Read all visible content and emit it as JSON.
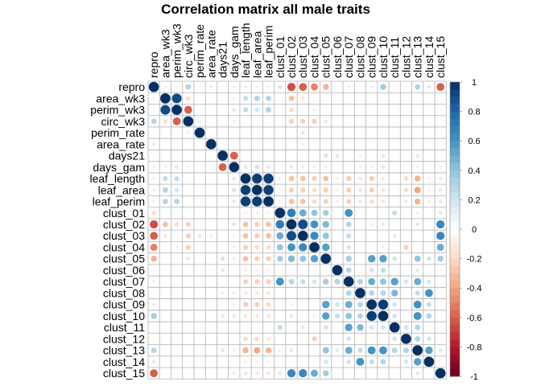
{
  "chart_data": {
    "type": "heatmap",
    "title": "Correlation matrix all male traits",
    "xlabel": "",
    "ylabel": "",
    "variables": [
      "repro",
      "area_wk3",
      "perim_wk3",
      "circ_wk3",
      "perim_rate",
      "area_rate",
      "days21",
      "days_gam",
      "leaf_length",
      "leaf_area",
      "leaf_perim",
      "clust_01",
      "clust_02",
      "clust_03",
      "clust_04",
      "clust_05",
      "clust_06",
      "clust_07",
      "clust_08",
      "clust_09",
      "clust_10",
      "clust_11",
      "clust_12",
      "clust_13",
      "clust_14",
      "clust_15"
    ],
    "value_range": [
      -1,
      1
    ],
    "colorbar_ticks": [
      "1",
      "0.8",
      "0.6",
      "0.4",
      "0.2",
      "0",
      "-0.2",
      "-0.4",
      "-0.6",
      "-0.8",
      "-1"
    ],
    "colorbar_placement": "right",
    "colors": {
      "negative": "#67001f",
      "zero": "#ffffff",
      "positive": "#053061",
      "grid": "#b0b0b0"
    },
    "correlations": [
      {
        "row": "repro",
        "col": "area_wk3",
        "value": 0.08
      },
      {
        "row": "repro",
        "col": "perim_wk3",
        "value": 0.05
      },
      {
        "row": "repro",
        "col": "circ_wk3",
        "value": 0.3
      },
      {
        "row": "repro",
        "col": "area_rate",
        "value": 0.12
      },
      {
        "row": "repro",
        "col": "days_gam",
        "value": 0.1
      },
      {
        "row": "repro",
        "col": "leaf_length",
        "value": 0.1
      },
      {
        "row": "repro",
        "col": "leaf_area",
        "value": 0.1
      },
      {
        "row": "repro",
        "col": "leaf_perim",
        "value": 0.1
      },
      {
        "row": "repro",
        "col": "clust_01",
        "value": -0.2
      },
      {
        "row": "repro",
        "col": "clust_02",
        "value": -0.65
      },
      {
        "row": "repro",
        "col": "clust_03",
        "value": -0.6
      },
      {
        "row": "repro",
        "col": "clust_04",
        "value": -0.5
      },
      {
        "row": "repro",
        "col": "clust_05",
        "value": -0.35
      },
      {
        "row": "repro",
        "col": "clust_07",
        "value": 0.1
      },
      {
        "row": "repro",
        "col": "clust_09",
        "value": 0.12
      },
      {
        "row": "repro",
        "col": "clust_10",
        "value": 0.35
      },
      {
        "row": "repro",
        "col": "clust_13",
        "value": 0.3
      },
      {
        "row": "repro",
        "col": "clust_14",
        "value": 0.15
      },
      {
        "row": "repro",
        "col": "clust_15",
        "value": -0.6
      },
      {
        "row": "area_wk3",
        "col": "perim_wk3",
        "value": 0.9
      },
      {
        "row": "area_wk3",
        "col": "circ_wk3",
        "value": -0.2
      },
      {
        "row": "area_wk3",
        "col": "days_gam",
        "value": 0.1
      },
      {
        "row": "area_wk3",
        "col": "leaf_length",
        "value": 0.25
      },
      {
        "row": "area_wk3",
        "col": "leaf_area",
        "value": 0.3
      },
      {
        "row": "area_wk3",
        "col": "leaf_perim",
        "value": 0.3
      },
      {
        "row": "area_wk3",
        "col": "clust_02",
        "value": -0.3
      },
      {
        "row": "area_wk3",
        "col": "clust_03",
        "value": -0.15
      },
      {
        "row": "perim_wk3",
        "col": "circ_wk3",
        "value": -0.6
      },
      {
        "row": "perim_wk3",
        "col": "days_gam",
        "value": 0.15
      },
      {
        "row": "perim_wk3",
        "col": "leaf_length",
        "value": 0.25
      },
      {
        "row": "perim_wk3",
        "col": "leaf_area",
        "value": 0.2
      },
      {
        "row": "perim_wk3",
        "col": "leaf_perim",
        "value": 0.3
      },
      {
        "row": "perim_wk3",
        "col": "clust_02",
        "value": -0.2
      },
      {
        "row": "perim_wk3",
        "col": "clust_04",
        "value": -0.1
      },
      {
        "row": "circ_wk3",
        "col": "perim_rate",
        "value": 0.1
      },
      {
        "row": "circ_wk3",
        "col": "days_gam",
        "value": -0.1
      },
      {
        "row": "circ_wk3",
        "col": "clust_02",
        "value": -0.25
      },
      {
        "row": "circ_wk3",
        "col": "clust_03",
        "value": -0.25
      },
      {
        "row": "circ_wk3",
        "col": "clust_04",
        "value": -0.25
      },
      {
        "row": "circ_wk3",
        "col": "clust_05",
        "value": -0.15
      },
      {
        "row": "perim_rate",
        "col": "clust_03",
        "value": 0.15
      },
      {
        "row": "area_rate",
        "col": "clust_03",
        "value": 0.1
      },
      {
        "row": "days21",
        "col": "days_gam",
        "value": -0.6
      },
      {
        "row": "days21",
        "col": "clust_05",
        "value": 0.2
      },
      {
        "row": "days21",
        "col": "clust_06",
        "value": 0.15
      },
      {
        "row": "days21",
        "col": "clust_08",
        "value": 0.1
      },
      {
        "row": "days21",
        "col": "clust_10",
        "value": 0.15
      },
      {
        "row": "days21",
        "col": "clust_13",
        "value": 0.15
      },
      {
        "row": "days_gam",
        "col": "leaf_length",
        "value": 0.15
      },
      {
        "row": "days_gam",
        "col": "leaf_area",
        "value": 0.2
      },
      {
        "row": "days_gam",
        "col": "leaf_perim",
        "value": 0.15
      },
      {
        "row": "days_gam",
        "col": "clust_02",
        "value": 0.15
      },
      {
        "row": "days_gam",
        "col": "clust_03",
        "value": 0.1
      },
      {
        "row": "days_gam",
        "col": "clust_04",
        "value": 0.1
      },
      {
        "row": "days_gam",
        "col": "clust_05",
        "value": 0.1
      },
      {
        "row": "days_gam",
        "col": "clust_08",
        "value": 0.1
      },
      {
        "row": "days_gam",
        "col": "clust_09",
        "value": -0.1
      },
      {
        "row": "days_gam",
        "col": "clust_10",
        "value": 0.15
      },
      {
        "row": "days_gam",
        "col": "clust_13",
        "value": 0.1
      },
      {
        "row": "days_gam",
        "col": "clust_15",
        "value": 0.1
      },
      {
        "row": "leaf_length",
        "col": "leaf_area",
        "value": 0.95
      },
      {
        "row": "leaf_length",
        "col": "leaf_perim",
        "value": 0.95
      },
      {
        "row": "leaf_length",
        "col": "clust_01",
        "value": -0.1
      },
      {
        "row": "leaf_length",
        "col": "clust_02",
        "value": -0.3
      },
      {
        "row": "leaf_length",
        "col": "clust_03",
        "value": -0.3
      },
      {
        "row": "leaf_length",
        "col": "clust_04",
        "value": -0.25
      },
      {
        "row": "leaf_length",
        "col": "clust_05",
        "value": -0.3
      },
      {
        "row": "leaf_length",
        "col": "clust_06",
        "value": -0.1
      },
      {
        "row": "leaf_length",
        "col": "clust_07",
        "value": -0.25
      },
      {
        "row": "leaf_length",
        "col": "clust_08",
        "value": -0.15
      },
      {
        "row": "leaf_length",
        "col": "clust_09",
        "value": -0.25
      },
      {
        "row": "leaf_length",
        "col": "clust_10",
        "value": -0.15
      },
      {
        "row": "leaf_length",
        "col": "clust_12",
        "value": -0.2
      },
      {
        "row": "leaf_length",
        "col": "clust_13",
        "value": -0.35
      },
      {
        "row": "leaf_length",
        "col": "clust_14",
        "value": -0.1
      },
      {
        "row": "leaf_length",
        "col": "clust_15",
        "value": -0.15
      },
      {
        "row": "leaf_area",
        "col": "leaf_perim",
        "value": 0.95
      },
      {
        "row": "leaf_area",
        "col": "clust_01",
        "value": -0.1
      },
      {
        "row": "leaf_area",
        "col": "clust_02",
        "value": -0.25
      },
      {
        "row": "leaf_area",
        "col": "clust_03",
        "value": -0.25
      },
      {
        "row": "leaf_area",
        "col": "clust_04",
        "value": -0.2
      },
      {
        "row": "leaf_area",
        "col": "clust_05",
        "value": -0.25
      },
      {
        "row": "leaf_area",
        "col": "clust_06",
        "value": -0.1
      },
      {
        "row": "leaf_area",
        "col": "clust_07",
        "value": -0.25
      },
      {
        "row": "leaf_area",
        "col": "clust_08",
        "value": -0.15
      },
      {
        "row": "leaf_area",
        "col": "clust_09",
        "value": -0.25
      },
      {
        "row": "leaf_area",
        "col": "clust_10",
        "value": -0.15
      },
      {
        "row": "leaf_area",
        "col": "clust_12",
        "value": -0.2
      },
      {
        "row": "leaf_area",
        "col": "clust_13",
        "value": -0.4
      },
      {
        "row": "leaf_area",
        "col": "clust_14",
        "value": -0.1
      },
      {
        "row": "leaf_area",
        "col": "clust_15",
        "value": -0.15
      },
      {
        "row": "leaf_perim",
        "col": "clust_01",
        "value": -0.1
      },
      {
        "row": "leaf_perim",
        "col": "clust_02",
        "value": -0.3
      },
      {
        "row": "leaf_perim",
        "col": "clust_03",
        "value": -0.3
      },
      {
        "row": "leaf_perim",
        "col": "clust_04",
        "value": -0.2
      },
      {
        "row": "leaf_perim",
        "col": "clust_05",
        "value": -0.25
      },
      {
        "row": "leaf_perim",
        "col": "clust_06",
        "value": -0.1
      },
      {
        "row": "leaf_perim",
        "col": "clust_07",
        "value": -0.25
      },
      {
        "row": "leaf_perim",
        "col": "clust_08",
        "value": -0.15
      },
      {
        "row": "leaf_perim",
        "col": "clust_09",
        "value": -0.2
      },
      {
        "row": "leaf_perim",
        "col": "clust_10",
        "value": -0.15
      },
      {
        "row": "leaf_perim",
        "col": "clust_12",
        "value": -0.15
      },
      {
        "row": "leaf_perim",
        "col": "clust_13",
        "value": -0.35
      },
      {
        "row": "leaf_perim",
        "col": "clust_14",
        "value": -0.1
      },
      {
        "row": "leaf_perim",
        "col": "clust_15",
        "value": -0.15
      },
      {
        "row": "clust_01",
        "col": "clust_02",
        "value": 0.7
      },
      {
        "row": "clust_01",
        "col": "clust_03",
        "value": 0.5
      },
      {
        "row": "clust_01",
        "col": "clust_04",
        "value": 0.4
      },
      {
        "row": "clust_01",
        "col": "clust_05",
        "value": 0.35
      },
      {
        "row": "clust_01",
        "col": "clust_07",
        "value": 0.6
      },
      {
        "row": "clust_01",
        "col": "clust_11",
        "value": 0.25
      },
      {
        "row": "clust_01",
        "col": "clust_13",
        "value": 0.1
      },
      {
        "row": "clust_01",
        "col": "clust_15",
        "value": 0.15
      },
      {
        "row": "clust_02",
        "col": "clust_03",
        "value": 0.9
      },
      {
        "row": "clust_02",
        "col": "clust_04",
        "value": 0.6
      },
      {
        "row": "clust_02",
        "col": "clust_05",
        "value": 0.45
      },
      {
        "row": "clust_02",
        "col": "clust_07",
        "value": 0.3
      },
      {
        "row": "clust_02",
        "col": "clust_09",
        "value": 0.1
      },
      {
        "row": "clust_02",
        "col": "clust_10",
        "value": 0.15
      },
      {
        "row": "clust_02",
        "col": "clust_13",
        "value": 0.15
      },
      {
        "row": "clust_02",
        "col": "clust_15",
        "value": 0.65
      },
      {
        "row": "clust_03",
        "col": "clust_04",
        "value": 0.65
      },
      {
        "row": "clust_03",
        "col": "clust_05",
        "value": 0.4
      },
      {
        "row": "clust_03",
        "col": "clust_07",
        "value": 0.25
      },
      {
        "row": "clust_03",
        "col": "clust_11",
        "value": -0.15
      },
      {
        "row": "clust_03",
        "col": "clust_15",
        "value": 0.65
      },
      {
        "row": "clust_04",
        "col": "clust_05",
        "value": 0.55
      },
      {
        "row": "clust_04",
        "col": "clust_07",
        "value": 0.2
      },
      {
        "row": "clust_04",
        "col": "clust_10",
        "value": 0.1
      },
      {
        "row": "clust_04",
        "col": "clust_12",
        "value": -0.25
      },
      {
        "row": "clust_04",
        "col": "clust_15",
        "value": 0.5
      },
      {
        "row": "clust_05",
        "col": "clust_07",
        "value": 0.35
      },
      {
        "row": "clust_05",
        "col": "clust_09",
        "value": 0.55
      },
      {
        "row": "clust_05",
        "col": "clust_10",
        "value": 0.55
      },
      {
        "row": "clust_05",
        "col": "clust_11",
        "value": 0.2
      },
      {
        "row": "clust_05",
        "col": "clust_13",
        "value": 0.4
      },
      {
        "row": "clust_05",
        "col": "clust_14",
        "value": 0.2
      },
      {
        "row": "clust_05",
        "col": "clust_15",
        "value": 0.35
      },
      {
        "row": "clust_06",
        "col": "clust_07",
        "value": 0.3
      },
      {
        "row": "clust_06",
        "col": "clust_09",
        "value": 0.2
      },
      {
        "row": "clust_06",
        "col": "clust_10",
        "value": 0.25
      },
      {
        "row": "clust_06",
        "col": "clust_13",
        "value": 0.15
      },
      {
        "row": "clust_07",
        "col": "clust_08",
        "value": 0.3
      },
      {
        "row": "clust_07",
        "col": "clust_09",
        "value": 0.5
      },
      {
        "row": "clust_07",
        "col": "clust_10",
        "value": 0.4
      },
      {
        "row": "clust_07",
        "col": "clust_11",
        "value": 0.55
      },
      {
        "row": "clust_07",
        "col": "clust_12",
        "value": 0.2
      },
      {
        "row": "clust_07",
        "col": "clust_13",
        "value": 0.5
      },
      {
        "row": "clust_07",
        "col": "clust_14",
        "value": 0.2
      },
      {
        "row": "clust_08",
        "col": "clust_09",
        "value": 0.3
      },
      {
        "row": "clust_08",
        "col": "clust_10",
        "value": 0.3
      },
      {
        "row": "clust_08",
        "col": "clust_11",
        "value": 0.45
      },
      {
        "row": "clust_08",
        "col": "clust_13",
        "value": 0.25
      },
      {
        "row": "clust_08",
        "col": "clust_14",
        "value": 0.6
      },
      {
        "row": "clust_09",
        "col": "clust_10",
        "value": 0.95
      },
      {
        "row": "clust_09",
        "col": "clust_11",
        "value": 0.2
      },
      {
        "row": "clust_09",
        "col": "clust_13",
        "value": 0.6
      },
      {
        "row": "clust_09",
        "col": "clust_14",
        "value": 0.25
      },
      {
        "row": "clust_10",
        "col": "clust_11",
        "value": 0.2
      },
      {
        "row": "clust_10",
        "col": "clust_13",
        "value": 0.6
      },
      {
        "row": "clust_10",
        "col": "clust_14",
        "value": 0.3
      },
      {
        "row": "clust_11",
        "col": "clust_12",
        "value": 0.2
      },
      {
        "row": "clust_11",
        "col": "clust_13",
        "value": 0.3
      },
      {
        "row": "clust_12",
        "col": "clust_13",
        "value": 0.3
      },
      {
        "row": "clust_12",
        "col": "clust_14",
        "value": 0.2
      },
      {
        "row": "clust_13",
        "col": "clust_14",
        "value": 0.55
      },
      {
        "row": "clust_13",
        "col": "clust_15",
        "value": 0.15
      }
    ]
  }
}
